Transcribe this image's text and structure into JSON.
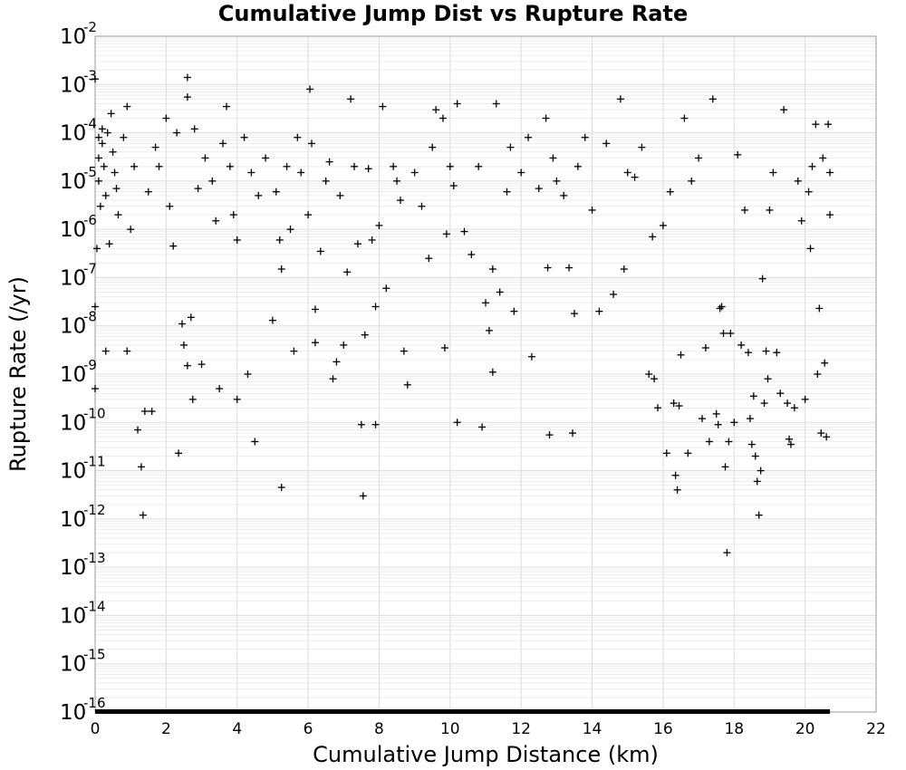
{
  "chart_data": {
    "type": "scatter",
    "title": "Cumulative Jump Dist vs Rupture Rate",
    "xlabel": "Cumulative Jump Distance (km)",
    "ylabel": "Rupture Rate (/yr)",
    "xlim": [
      0,
      22
    ],
    "ylim": [
      1e-16,
      0.01
    ],
    "y_scale": "log",
    "grid": true,
    "marker": "plus",
    "marker_color": "#000000",
    "x_ticks": [
      "0",
      "2",
      "4",
      "6",
      "8",
      "10",
      "12",
      "14",
      "16",
      "18",
      "20",
      "22"
    ],
    "y_ticks": [
      {
        "base": "10",
        "exp": "-16"
      },
      {
        "base": "10",
        "exp": "-15"
      },
      {
        "base": "10",
        "exp": "-14"
      },
      {
        "base": "10",
        "exp": "-13"
      },
      {
        "base": "10",
        "exp": "-12"
      },
      {
        "base": "10",
        "exp": "-11"
      },
      {
        "base": "10",
        "exp": "-10"
      },
      {
        "base": "10",
        "exp": "-9"
      },
      {
        "base": "10",
        "exp": "-8"
      },
      {
        "base": "10",
        "exp": "-7"
      },
      {
        "base": "10",
        "exp": "-6"
      },
      {
        "base": "10",
        "exp": "-5"
      },
      {
        "base": "10",
        "exp": "-4"
      },
      {
        "base": "10",
        "exp": "-3"
      },
      {
        "base": "10",
        "exp": "-2"
      }
    ],
    "points": [
      [
        0.0,
        0.0013
      ],
      [
        0.0,
        2.5e-08
      ],
      [
        0.0,
        5e-10
      ],
      [
        0.05,
        4e-07
      ],
      [
        0.1,
        8e-05
      ],
      [
        0.1,
        3e-05
      ],
      [
        0.1,
        1e-05
      ],
      [
        0.15,
        3e-06
      ],
      [
        0.2,
        0.00012
      ],
      [
        0.2,
        6e-05
      ],
      [
        0.25,
        2e-05
      ],
      [
        0.3,
        5e-06
      ],
      [
        0.3,
        3e-09
      ],
      [
        0.35,
        0.0001
      ],
      [
        0.4,
        5e-07
      ],
      [
        0.45,
        0.00025
      ],
      [
        0.5,
        4e-05
      ],
      [
        0.55,
        1.5e-05
      ],
      [
        0.6,
        7e-06
      ],
      [
        0.65,
        2e-06
      ],
      [
        0.8,
        8e-05
      ],
      [
        0.9,
        0.00035
      ],
      [
        0.9,
        3e-09
      ],
      [
        1.0,
        1e-06
      ],
      [
        1.1,
        2e-05
      ],
      [
        1.2,
        7e-11
      ],
      [
        1.3,
        1.2e-11
      ],
      [
        1.35,
        1.2e-12
      ],
      [
        1.4,
        1.7e-10
      ],
      [
        1.5,
        6e-06
      ],
      [
        1.6,
        1.7e-10
      ],
      [
        1.7,
        5e-05
      ],
      [
        1.8,
        2e-05
      ],
      [
        2.0,
        0.0002
      ],
      [
        2.1,
        3e-06
      ],
      [
        2.2,
        4.5e-07
      ],
      [
        2.3,
        0.0001
      ],
      [
        2.35,
        2.3e-11
      ],
      [
        2.45,
        1.1e-08
      ],
      [
        2.5,
        4e-09
      ],
      [
        2.6,
        0.0014
      ],
      [
        2.6,
        0.00055
      ],
      [
        2.6,
        1.5e-09
      ],
      [
        2.7,
        1.5e-08
      ],
      [
        2.75,
        3e-10
      ],
      [
        2.8,
        0.00012
      ],
      [
        2.9,
        7e-06
      ],
      [
        3.0,
        1.6e-09
      ],
      [
        3.1,
        3e-05
      ],
      [
        3.3,
        1e-05
      ],
      [
        3.4,
        1.5e-06
      ],
      [
        3.5,
        5e-10
      ],
      [
        3.6,
        6e-05
      ],
      [
        3.7,
        0.00035
      ],
      [
        3.8,
        2e-05
      ],
      [
        3.9,
        2e-06
      ],
      [
        4.0,
        6e-07
      ],
      [
        4.0,
        3e-10
      ],
      [
        4.2,
        8e-05
      ],
      [
        4.3,
        1e-09
      ],
      [
        4.4,
        1.5e-05
      ],
      [
        4.5,
        4e-11
      ],
      [
        4.6,
        5e-06
      ],
      [
        4.8,
        3e-05
      ],
      [
        5.0,
        1.3e-08
      ],
      [
        5.1,
        6e-06
      ],
      [
        5.2,
        6e-07
      ],
      [
        5.25,
        1.5e-07
      ],
      [
        5.25,
        4.5e-12
      ],
      [
        5.4,
        2e-05
      ],
      [
        5.5,
        1e-06
      ],
      [
        5.6,
        3e-09
      ],
      [
        5.7,
        8e-05
      ],
      [
        5.8,
        1.5e-05
      ],
      [
        6.0,
        2e-06
      ],
      [
        6.05,
        0.0008
      ],
      [
        6.1,
        6e-05
      ],
      [
        6.2,
        2.2e-08
      ],
      [
        6.2,
        4.5e-09
      ],
      [
        6.35,
        3.5e-07
      ],
      [
        6.5,
        1e-05
      ],
      [
        6.6,
        2.5e-05
      ],
      [
        6.7,
        8e-10
      ],
      [
        6.8,
        1.8e-09
      ],
      [
        6.9,
        5e-06
      ],
      [
        7.0,
        4e-09
      ],
      [
        7.1,
        1.3e-07
      ],
      [
        7.2,
        0.0005
      ],
      [
        7.3,
        2e-05
      ],
      [
        7.4,
        5e-07
      ],
      [
        7.5,
        9e-11
      ],
      [
        7.55,
        3e-12
      ],
      [
        7.6,
        6.5e-09
      ],
      [
        7.7,
        1.8e-05
      ],
      [
        7.8,
        6e-07
      ],
      [
        7.9,
        9e-11
      ],
      [
        7.9,
        2.5e-08
      ],
      [
        8.0,
        1.2e-06
      ],
      [
        8.1,
        0.00035
      ],
      [
        8.2,
        6e-08
      ],
      [
        8.4,
        2e-05
      ],
      [
        8.5,
        1e-05
      ],
      [
        8.6,
        4e-06
      ],
      [
        8.7,
        3e-09
      ],
      [
        8.8,
        6e-10
      ],
      [
        9.0,
        1.5e-05
      ],
      [
        9.2,
        3e-06
      ],
      [
        9.4,
        2.5e-07
      ],
      [
        9.5,
        5e-05
      ],
      [
        9.6,
        0.0003
      ],
      [
        9.8,
        0.0002
      ],
      [
        9.85,
        3.5e-09
      ],
      [
        9.9,
        8e-07
      ],
      [
        10.0,
        2e-05
      ],
      [
        10.1,
        8e-06
      ],
      [
        10.2,
        1e-10
      ],
      [
        10.2,
        0.0004
      ],
      [
        10.4,
        9e-07
      ],
      [
        10.6,
        3e-07
      ],
      [
        10.8,
        2e-05
      ],
      [
        10.9,
        8e-11
      ],
      [
        11.0,
        3e-08
      ],
      [
        11.1,
        8e-09
      ],
      [
        11.2,
        1.1e-09
      ],
      [
        11.2,
        1.5e-07
      ],
      [
        11.3,
        0.0004
      ],
      [
        11.4,
        5e-08
      ],
      [
        11.6,
        6e-06
      ],
      [
        11.7,
        5e-05
      ],
      [
        11.8,
        2e-08
      ],
      [
        12.0,
        1.5e-05
      ],
      [
        12.2,
        8e-05
      ],
      [
        12.3,
        2.3e-09
      ],
      [
        12.5,
        7e-06
      ],
      [
        12.7,
        0.0002
      ],
      [
        12.75,
        1.6e-07
      ],
      [
        12.8,
        5.5e-11
      ],
      [
        12.9,
        3e-05
      ],
      [
        13.0,
        1e-05
      ],
      [
        13.2,
        5e-06
      ],
      [
        13.35,
        1.6e-07
      ],
      [
        13.45,
        6e-11
      ],
      [
        13.5,
        1.8e-08
      ],
      [
        13.6,
        2e-05
      ],
      [
        13.8,
        8e-05
      ],
      [
        14.0,
        2.5e-06
      ],
      [
        14.2,
        2e-08
      ],
      [
        14.4,
        6e-05
      ],
      [
        14.6,
        4.5e-08
      ],
      [
        14.8,
        0.0005
      ],
      [
        14.9,
        1.5e-07
      ],
      [
        15.0,
        1.5e-05
      ],
      [
        15.2,
        1.2e-05
      ],
      [
        15.4,
        5e-05
      ],
      [
        15.6,
        1e-09
      ],
      [
        15.7,
        7e-07
      ],
      [
        15.75,
        8e-10
      ],
      [
        15.85,
        2e-10
      ],
      [
        16.0,
        1.2e-06
      ],
      [
        16.1,
        2.3e-11
      ],
      [
        16.2,
        6e-06
      ],
      [
        16.3,
        2.5e-10
      ],
      [
        16.35,
        8e-12
      ],
      [
        16.4,
        4e-12
      ],
      [
        16.45,
        2.2e-10
      ],
      [
        16.5,
        2.5e-09
      ],
      [
        16.6,
        0.0002
      ],
      [
        16.7,
        2.3e-11
      ],
      [
        16.8,
        1e-05
      ],
      [
        17.0,
        3e-05
      ],
      [
        17.1,
        1.2e-10
      ],
      [
        17.2,
        3.5e-09
      ],
      [
        17.3,
        4e-11
      ],
      [
        17.4,
        0.0005
      ],
      [
        17.5,
        1.5e-10
      ],
      [
        17.55,
        9e-11
      ],
      [
        17.6,
        2.3e-08
      ],
      [
        17.65,
        2.5e-08
      ],
      [
        17.7,
        7e-09
      ],
      [
        17.75,
        1.2e-11
      ],
      [
        17.8,
        2e-13
      ],
      [
        17.85,
        4e-11
      ],
      [
        17.9,
        7e-09
      ],
      [
        18.0,
        1e-10
      ],
      [
        18.1,
        3.5e-05
      ],
      [
        18.2,
        4e-09
      ],
      [
        18.3,
        2.5e-06
      ],
      [
        18.4,
        2.8e-09
      ],
      [
        18.45,
        1.2e-10
      ],
      [
        18.5,
        3.5e-11
      ],
      [
        18.55,
        3.5e-10
      ],
      [
        18.6,
        2e-11
      ],
      [
        18.65,
        6e-12
      ],
      [
        18.7,
        1.2e-12
      ],
      [
        18.75,
        1e-11
      ],
      [
        18.8,
        9.5e-08
      ],
      [
        18.85,
        2.5e-10
      ],
      [
        18.9,
        3e-09
      ],
      [
        18.95,
        8e-10
      ],
      [
        19.0,
        2.5e-06
      ],
      [
        19.1,
        1.5e-05
      ],
      [
        19.2,
        2.8e-09
      ],
      [
        19.3,
        4e-10
      ],
      [
        19.4,
        0.0003
      ],
      [
        19.5,
        2.5e-10
      ],
      [
        19.55,
        4.5e-11
      ],
      [
        19.6,
        3.5e-11
      ],
      [
        19.7,
        2e-10
      ],
      [
        19.8,
        1e-05
      ],
      [
        19.9,
        1.5e-06
      ],
      [
        20.0,
        3e-10
      ],
      [
        20.1,
        6e-06
      ],
      [
        20.15,
        4e-07
      ],
      [
        20.2,
        2e-05
      ],
      [
        20.3,
        0.00015
      ],
      [
        20.35,
        1e-09
      ],
      [
        20.4,
        2.3e-08
      ],
      [
        20.45,
        6e-11
      ],
      [
        20.5,
        3e-05
      ],
      [
        20.55,
        1.7e-09
      ],
      [
        20.6,
        5e-11
      ],
      [
        20.65,
        0.00015
      ],
      [
        20.7,
        2e-06
      ],
      [
        20.7,
        1.5e-05
      ]
    ],
    "baseline_band": {
      "x": [
        0,
        20.7
      ],
      "y": 1e-16
    }
  }
}
